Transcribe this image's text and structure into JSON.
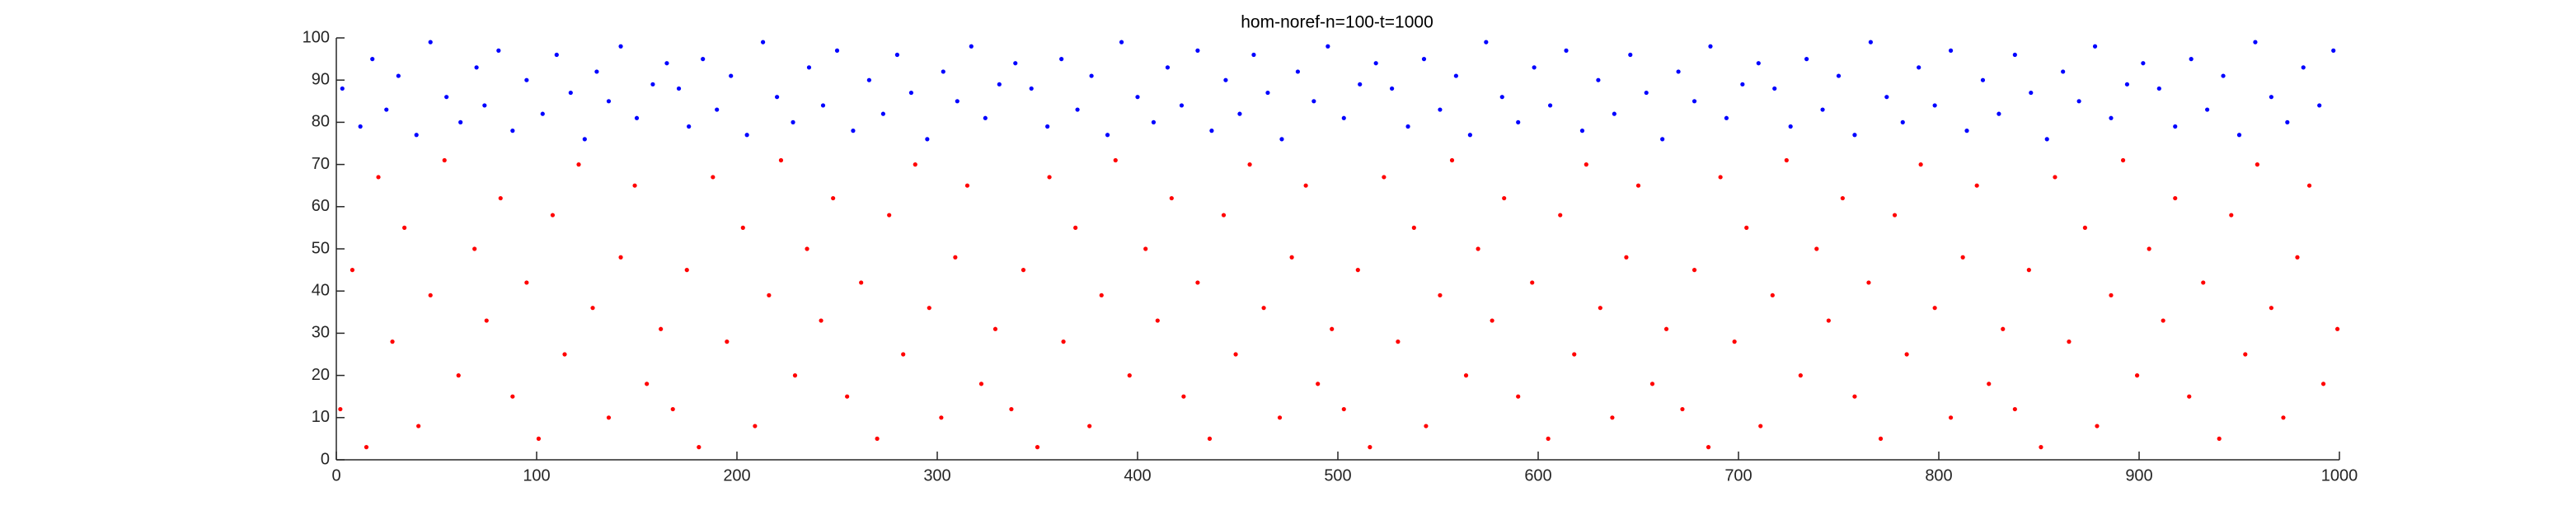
{
  "chart_data": {
    "type": "scatter",
    "title": "hom-noref-n=100-t=1000",
    "xlim": [
      0,
      1000
    ],
    "xticks": [
      0,
      100,
      200,
      300,
      400,
      500,
      600,
      700,
      800,
      900,
      1000
    ],
    "ylim": [
      0,
      100
    ],
    "yticks": [
      0,
      10,
      20,
      30,
      40,
      50,
      60,
      70,
      80,
      90,
      100
    ],
    "series": [
      {
        "color": "#0000ff",
        "x": [
          3,
          12,
          18,
          25,
          31,
          40,
          47,
          55,
          62,
          70,
          74,
          81,
          88,
          95,
          103,
          110,
          117,
          124,
          130,
          136,
          142,
          150,
          158,
          165,
          171,
          176,
          183,
          190,
          197,
          205,
          213,
          220,
          228,
          236,
          243,
          250,
          258,
          266,
          273,
          280,
          287,
          295,
          303,
          310,
          317,
          324,
          331,
          339,
          347,
          355,
          362,
          370,
          377,
          385,
          392,
          400,
          408,
          415,
          422,
          430,
          437,
          444,
          451,
          458,
          465,
          472,
          480,
          488,
          495,
          503,
          511,
          519,
          527,
          535,
          543,
          551,
          559,
          566,
          574,
          582,
          590,
          598,
          606,
          614,
          622,
          630,
          638,
          646,
          654,
          662,
          670,
          678,
          686,
          694,
          702,
          710,
          718,
          726,
          734,
          742,
          750,
          758,
          766,
          774,
          782,
          790,
          798,
          806,
          814,
          822,
          830,
          838,
          846,
          854,
          862,
          870,
          878,
          886,
          894,
          902,
          910,
          918,
          926,
          934,
          942,
          950,
          958,
          966,
          974,
          982,
          990,
          997
        ],
        "values": [
          88,
          79,
          95,
          83,
          91,
          77,
          99,
          86,
          80,
          93,
          84,
          97,
          78,
          90,
          82,
          96,
          87,
          76,
          92,
          85,
          98,
          81,
          89,
          94,
          88,
          79,
          95,
          83,
          91,
          77,
          99,
          86,
          80,
          93,
          84,
          97,
          78,
          90,
          82,
          96,
          87,
          76,
          92,
          85,
          98,
          81,
          89,
          94,
          88,
          79,
          95,
          83,
          91,
          77,
          99,
          86,
          80,
          93,
          84,
          97,
          78,
          90,
          82,
          96,
          87,
          76,
          92,
          85,
          98,
          81,
          89,
          94,
          88,
          79,
          95,
          83,
          91,
          77,
          99,
          86,
          80,
          93,
          84,
          97,
          78,
          90,
          82,
          96,
          87,
          76,
          92,
          85,
          98,
          81,
          89,
          94,
          88,
          79,
          95,
          83,
          91,
          77,
          99,
          86,
          80,
          93,
          84,
          97,
          78,
          90,
          82,
          96,
          87,
          76,
          92,
          85,
          98,
          81,
          89,
          94,
          88,
          79,
          95,
          83,
          91,
          77,
          99,
          86,
          80,
          93,
          84,
          97
        ]
      },
      {
        "color": "#ff0000",
        "x": [
          2,
          8,
          15,
          21,
          28,
          34,
          41,
          47,
          54,
          61,
          69,
          75,
          82,
          88,
          95,
          101,
          108,
          114,
          121,
          128,
          136,
          142,
          149,
          155,
          162,
          168,
          175,
          181,
          188,
          195,
          203,
          209,
          216,
          222,
          229,
          235,
          242,
          248,
          255,
          262,
          270,
          276,
          283,
          289,
          296,
          302,
          309,
          315,
          322,
          329,
          337,
          343,
          350,
          356,
          363,
          369,
          376,
          382,
          389,
          396,
          404,
          410,
          417,
          423,
          430,
          436,
          443,
          449,
          456,
          463,
          471,
          477,
          484,
          490,
          497,
          503,
          510,
          516,
          523,
          530,
          538,
          544,
          551,
          557,
          564,
          570,
          577,
          583,
          590,
          597,
          605,
          611,
          618,
          624,
          631,
          637,
          644,
          650,
          657,
          664,
          672,
          678,
          685,
          691,
          698,
          704,
          711,
          717,
          724,
          731,
          739,
          745,
          752,
          758,
          765,
          771,
          778,
          784,
          791,
          798,
          806,
          812,
          819,
          825,
          832,
          838,
          845,
          851,
          858,
          865,
          873,
          879,
          886,
          892,
          899,
          905,
          912,
          918,
          925,
          932,
          940,
          946,
          953,
          959,
          966,
          972,
          979,
          985,
          992,
          999
        ],
        "values": [
          12,
          45,
          3,
          67,
          28,
          55,
          8,
          39,
          71,
          20,
          50,
          33,
          62,
          15,
          42,
          5,
          58,
          25,
          70,
          36,
          10,
          48,
          65,
          18,
          31,
          12,
          45,
          3,
          67,
          28,
          55,
          8,
          39,
          71,
          20,
          50,
          33,
          62,
          15,
          42,
          5,
          58,
          25,
          70,
          36,
          10,
          48,
          65,
          18,
          31,
          12,
          45,
          3,
          67,
          28,
          55,
          8,
          39,
          71,
          20,
          50,
          33,
          62,
          15,
          42,
          5,
          58,
          25,
          70,
          36,
          10,
          48,
          65,
          18,
          31,
          12,
          45,
          3,
          67,
          28,
          55,
          8,
          39,
          71,
          20,
          50,
          33,
          62,
          15,
          42,
          5,
          58,
          25,
          70,
          36,
          10,
          48,
          65,
          18,
          31,
          12,
          45,
          3,
          67,
          28,
          55,
          8,
          39,
          71,
          20,
          50,
          33,
          62,
          15,
          42,
          5,
          58,
          25,
          70,
          36,
          10,
          48,
          65,
          18,
          31,
          12,
          45,
          3,
          67,
          28,
          55,
          8,
          39,
          71,
          20,
          50,
          33,
          62,
          15,
          42,
          5,
          58,
          25,
          70,
          36,
          10,
          48,
          65,
          18,
          31
        ]
      }
    ]
  }
}
